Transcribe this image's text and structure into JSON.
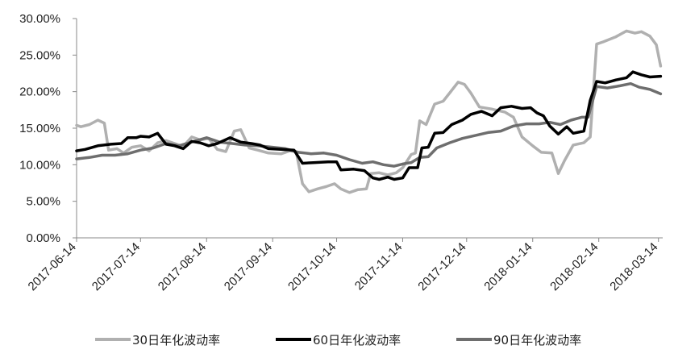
{
  "chart_data": {
    "type": "line",
    "title": "",
    "xlabel": "",
    "ylabel": "",
    "ylim": [
      0,
      30
    ],
    "y_ticks": [
      "0.00%",
      "5.00%",
      "10.00%",
      "15.00%",
      "20.00%",
      "25.00%",
      "30.00%"
    ],
    "x_ticks": [
      "2017-06-14",
      "2017-07-14",
      "2017-08-14",
      "2017-09-14",
      "2017-10-14",
      "2017-11-14",
      "2017-12-14",
      "2018-01-14",
      "2018-02-14",
      "2018-03-14"
    ],
    "x_range": [
      "2017-06-14",
      "2018-03-16"
    ],
    "grid": false,
    "legend_position": "bottom",
    "series": [
      {
        "name": "30日年化波动率",
        "color": "#b0b0b0",
        "points": [
          [
            "2017-06-14",
            15.4
          ],
          [
            "2017-06-16",
            15.2
          ],
          [
            "2017-06-20",
            15.5
          ],
          [
            "2017-06-24",
            16.1
          ],
          [
            "2017-06-27",
            15.7
          ],
          [
            "2017-06-29",
            12.0
          ],
          [
            "2017-07-03",
            12.2
          ],
          [
            "2017-07-06",
            11.6
          ],
          [
            "2017-07-10",
            12.4
          ],
          [
            "2017-07-14",
            12.6
          ],
          [
            "2017-07-18",
            11.9
          ],
          [
            "2017-07-22",
            13.0
          ],
          [
            "2017-07-26",
            13.3
          ],
          [
            "2017-07-30",
            12.9
          ],
          [
            "2017-08-03",
            12.5
          ],
          [
            "2017-08-07",
            13.8
          ],
          [
            "2017-08-11",
            13.4
          ],
          [
            "2017-08-15",
            13.6
          ],
          [
            "2017-08-19",
            12.1
          ],
          [
            "2017-08-23",
            11.8
          ],
          [
            "2017-08-27",
            14.6
          ],
          [
            "2017-08-30",
            14.8
          ],
          [
            "2017-09-03",
            12.3
          ],
          [
            "2017-09-07",
            12.0
          ],
          [
            "2017-09-12",
            11.6
          ],
          [
            "2017-09-18",
            11.5
          ],
          [
            "2017-09-22",
            11.9
          ],
          [
            "2017-09-25",
            11.8
          ],
          [
            "2017-09-28",
            7.4
          ],
          [
            "2017-10-01",
            6.3
          ],
          [
            "2017-10-05",
            6.7
          ],
          [
            "2017-10-09",
            7.0
          ],
          [
            "2017-10-13",
            7.4
          ],
          [
            "2017-10-16",
            6.7
          ],
          [
            "2017-10-20",
            6.2
          ],
          [
            "2017-10-24",
            6.6
          ],
          [
            "2017-10-28",
            6.7
          ],
          [
            "2017-10-30",
            8.8
          ],
          [
            "2017-11-03",
            8.9
          ],
          [
            "2017-11-07",
            8.6
          ],
          [
            "2017-11-11",
            8.9
          ],
          [
            "2017-11-14",
            9.6
          ],
          [
            "2017-11-18",
            11.4
          ],
          [
            "2017-11-20",
            11.6
          ],
          [
            "2017-11-22",
            16.0
          ],
          [
            "2017-11-25",
            15.5
          ],
          [
            "2017-11-29",
            18.3
          ],
          [
            "2017-12-03",
            18.7
          ],
          [
            "2017-12-06",
            19.8
          ],
          [
            "2017-12-10",
            21.3
          ],
          [
            "2017-12-13",
            21.0
          ],
          [
            "2017-12-16",
            19.8
          ],
          [
            "2017-12-20",
            17.9
          ],
          [
            "2017-12-26",
            17.6
          ],
          [
            "2018-01-01",
            17.2
          ],
          [
            "2018-01-05",
            16.5
          ],
          [
            "2018-01-09",
            13.8
          ],
          [
            "2018-01-14",
            12.6
          ],
          [
            "2018-01-18",
            11.7
          ],
          [
            "2018-01-23",
            11.6
          ],
          [
            "2018-01-26",
            8.8
          ],
          [
            "2018-01-29",
            10.6
          ],
          [
            "2018-02-02",
            12.7
          ],
          [
            "2018-02-07",
            13.0
          ],
          [
            "2018-02-10",
            13.8
          ],
          [
            "2018-02-13",
            26.5
          ],
          [
            "2018-02-16",
            26.8
          ],
          [
            "2018-02-22",
            27.5
          ],
          [
            "2018-02-27",
            28.3
          ],
          [
            "2018-03-03",
            28.0
          ],
          [
            "2018-03-06",
            28.2
          ],
          [
            "2018-03-10",
            27.6
          ],
          [
            "2018-03-13",
            26.4
          ],
          [
            "2018-03-15",
            23.5
          ]
        ]
      },
      {
        "name": "60日年化波动率",
        "color": "#000000",
        "points": [
          [
            "2017-06-14",
            11.9
          ],
          [
            "2017-06-18",
            12.1
          ],
          [
            "2017-06-24",
            12.6
          ],
          [
            "2017-06-30",
            12.8
          ],
          [
            "2017-07-05",
            12.9
          ],
          [
            "2017-07-08",
            13.7
          ],
          [
            "2017-07-12",
            13.7
          ],
          [
            "2017-07-14",
            13.9
          ],
          [
            "2017-07-18",
            13.8
          ],
          [
            "2017-07-22",
            14.3
          ],
          [
            "2017-07-26",
            12.8
          ],
          [
            "2017-07-30",
            12.6
          ],
          [
            "2017-08-03",
            12.2
          ],
          [
            "2017-08-07",
            13.2
          ],
          [
            "2017-08-11",
            13.0
          ],
          [
            "2017-08-15",
            12.6
          ],
          [
            "2017-08-19",
            12.9
          ],
          [
            "2017-08-25",
            13.7
          ],
          [
            "2017-08-30",
            13.1
          ],
          [
            "2017-09-04",
            12.9
          ],
          [
            "2017-09-08",
            12.7
          ],
          [
            "2017-09-12",
            12.2
          ],
          [
            "2017-09-18",
            12.1
          ],
          [
            "2017-09-24",
            12.0
          ],
          [
            "2017-09-28",
            10.2
          ],
          [
            "2017-10-04",
            10.3
          ],
          [
            "2017-10-10",
            10.4
          ],
          [
            "2017-10-14",
            10.4
          ],
          [
            "2017-10-16",
            9.3
          ],
          [
            "2017-10-22",
            9.4
          ],
          [
            "2017-10-27",
            9.2
          ],
          [
            "2017-10-31",
            8.2
          ],
          [
            "2017-11-03",
            8.0
          ],
          [
            "2017-11-07",
            8.3
          ],
          [
            "2017-11-10",
            8.0
          ],
          [
            "2017-11-14",
            8.2
          ],
          [
            "2017-11-17",
            9.6
          ],
          [
            "2017-11-21",
            9.6
          ],
          [
            "2017-11-23",
            12.3
          ],
          [
            "2017-11-26",
            12.4
          ],
          [
            "2017-11-29",
            14.3
          ],
          [
            "2017-12-03",
            14.4
          ],
          [
            "2017-12-07",
            15.5
          ],
          [
            "2017-12-12",
            16.1
          ],
          [
            "2017-12-16",
            16.9
          ],
          [
            "2017-12-21",
            17.3
          ],
          [
            "2017-12-26",
            16.7
          ],
          [
            "2017-12-30",
            17.8
          ],
          [
            "2018-01-04",
            18.0
          ],
          [
            "2018-01-09",
            17.7
          ],
          [
            "2018-01-13",
            17.8
          ],
          [
            "2018-01-16",
            17.1
          ],
          [
            "2018-01-19",
            16.7
          ],
          [
            "2018-01-22",
            15.3
          ],
          [
            "2018-01-26",
            14.2
          ],
          [
            "2018-01-30",
            15.2
          ],
          [
            "2018-02-02",
            14.3
          ],
          [
            "2018-02-07",
            14.6
          ],
          [
            "2018-02-10",
            18.8
          ],
          [
            "2018-02-13",
            21.4
          ],
          [
            "2018-02-17",
            21.2
          ],
          [
            "2018-02-22",
            21.6
          ],
          [
            "2018-02-27",
            21.9
          ],
          [
            "2018-03-02",
            22.7
          ],
          [
            "2018-03-06",
            22.3
          ],
          [
            "2018-03-10",
            22.0
          ],
          [
            "2018-03-15",
            22.1
          ]
        ]
      },
      {
        "name": "90日年化波动率",
        "color": "#6e6e6e",
        "points": [
          [
            "2017-06-14",
            10.8
          ],
          [
            "2017-06-20",
            11.0
          ],
          [
            "2017-06-26",
            11.3
          ],
          [
            "2017-07-02",
            11.3
          ],
          [
            "2017-07-08",
            11.5
          ],
          [
            "2017-07-14",
            12.0
          ],
          [
            "2017-07-20",
            12.3
          ],
          [
            "2017-07-26",
            12.9
          ],
          [
            "2017-08-01",
            12.6
          ],
          [
            "2017-08-07",
            13.1
          ],
          [
            "2017-08-14",
            13.7
          ],
          [
            "2017-08-20",
            13.1
          ],
          [
            "2017-08-26",
            12.9
          ],
          [
            "2017-09-01",
            12.7
          ],
          [
            "2017-09-07",
            12.6
          ],
          [
            "2017-09-14",
            12.4
          ],
          [
            "2017-09-20",
            12.2
          ],
          [
            "2017-09-26",
            11.7
          ],
          [
            "2017-10-02",
            11.5
          ],
          [
            "2017-10-08",
            11.6
          ],
          [
            "2017-10-14",
            11.3
          ],
          [
            "2017-10-20",
            10.7
          ],
          [
            "2017-10-26",
            10.2
          ],
          [
            "2017-10-31",
            10.4
          ],
          [
            "2017-11-05",
            10.0
          ],
          [
            "2017-11-10",
            9.8
          ],
          [
            "2017-11-14",
            10.1
          ],
          [
            "2017-11-18",
            10.3
          ],
          [
            "2017-11-22",
            11.0
          ],
          [
            "2017-11-26",
            11.1
          ],
          [
            "2017-11-30",
            12.3
          ],
          [
            "2017-12-06",
            13.0
          ],
          [
            "2017-12-12",
            13.6
          ],
          [
            "2017-12-18",
            14.0
          ],
          [
            "2017-12-24",
            14.4
          ],
          [
            "2017-12-30",
            14.6
          ],
          [
            "2018-01-05",
            15.3
          ],
          [
            "2018-01-11",
            15.6
          ],
          [
            "2018-01-17",
            15.6
          ],
          [
            "2018-01-22",
            15.8
          ],
          [
            "2018-01-27",
            15.5
          ],
          [
            "2018-02-01",
            16.1
          ],
          [
            "2018-02-06",
            16.5
          ],
          [
            "2018-02-09",
            16.5
          ],
          [
            "2018-02-13",
            20.7
          ],
          [
            "2018-02-18",
            20.5
          ],
          [
            "2018-02-24",
            20.8
          ],
          [
            "2018-03-01",
            21.1
          ],
          [
            "2018-03-05",
            20.6
          ],
          [
            "2018-03-10",
            20.3
          ],
          [
            "2018-03-15",
            19.7
          ]
        ]
      }
    ]
  }
}
